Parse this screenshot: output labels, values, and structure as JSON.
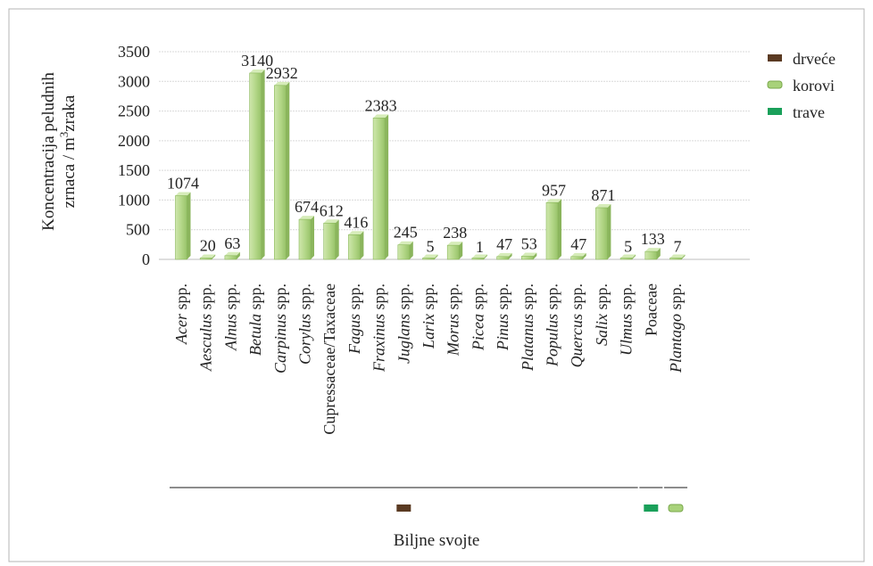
{
  "chart_data": {
    "type": "bar",
    "ylabel_line1": "Koncentracija peludnih",
    "ylabel_line2_pre": "zrnaca / m",
    "ylabel_line2_sup": "3",
    "ylabel_line2_post": "zraka",
    "xlabel": "Biljne svojte",
    "ylim": [
      0,
      3500
    ],
    "yticks": [
      0,
      500,
      1000,
      1500,
      2000,
      2500,
      3000,
      3500
    ],
    "grid": true,
    "categories": [
      {
        "name": "Acer",
        "suffix": " spp.",
        "italic": true,
        "value": 1074
      },
      {
        "name": "Aesculus",
        "suffix": " spp.",
        "italic": true,
        "value": 20
      },
      {
        "name": "Alnus",
        "suffix": " spp.",
        "italic": true,
        "value": 63
      },
      {
        "name": "Betula",
        "suffix": " spp.",
        "italic": true,
        "value": 3140
      },
      {
        "name": "Carpinus",
        "suffix": " spp.",
        "italic": true,
        "value": 2932
      },
      {
        "name": "Corylus",
        "suffix": " spp.",
        "italic": true,
        "value": 674
      },
      {
        "name": "Cupressaceae/Taxaceae",
        "suffix": "",
        "italic": false,
        "value": 612
      },
      {
        "name": "Fagus",
        "suffix": " spp.",
        "italic": true,
        "value": 416
      },
      {
        "name": "Fraxinus",
        "suffix": " spp.",
        "italic": true,
        "value": 2383
      },
      {
        "name": "Juglans",
        "suffix": " spp.",
        "italic": true,
        "value": 245
      },
      {
        "name": "Larix",
        "suffix": " spp.",
        "italic": true,
        "value": 5
      },
      {
        "name": "Morus",
        "suffix": " spp.",
        "italic": true,
        "value": 238
      },
      {
        "name": "Picea",
        "suffix": " spp.",
        "italic": true,
        "value": 1
      },
      {
        "name": "Pinus",
        "suffix": " spp.",
        "italic": true,
        "value": 47
      },
      {
        "name": "Platanus",
        "suffix": " spp.",
        "italic": true,
        "value": 53
      },
      {
        "name": "Populus",
        "suffix": " spp.",
        "italic": true,
        "value": 957
      },
      {
        "name": "Quercus",
        "suffix": " spp.",
        "italic": true,
        "value": 47
      },
      {
        "name": "Salix",
        "suffix": " spp.",
        "italic": true,
        "value": 871
      },
      {
        "name": "Ulmus",
        "suffix": " spp.",
        "italic": true,
        "value": 5
      },
      {
        "name": "Poaceae",
        "suffix": "",
        "italic": false,
        "value": 133
      },
      {
        "name": "Plantago",
        "suffix": " spp.",
        "italic": true,
        "value": 7
      }
    ],
    "legend": {
      "placement": "top-right",
      "entries": [
        {
          "label": "drveće",
          "color": "#5a3a22"
        },
        {
          "label": "korovi",
          "color": "#a8d27a"
        },
        {
          "label": "trave",
          "color": "#1aa05a"
        }
      ]
    },
    "groups": [
      {
        "legend_index": 0,
        "first": 0,
        "last": 18
      },
      {
        "legend_index": 2,
        "first": 19,
        "last": 19
      },
      {
        "legend_index": 1,
        "first": 20,
        "last": 20
      }
    ],
    "bar_color": "#b4d88a"
  }
}
